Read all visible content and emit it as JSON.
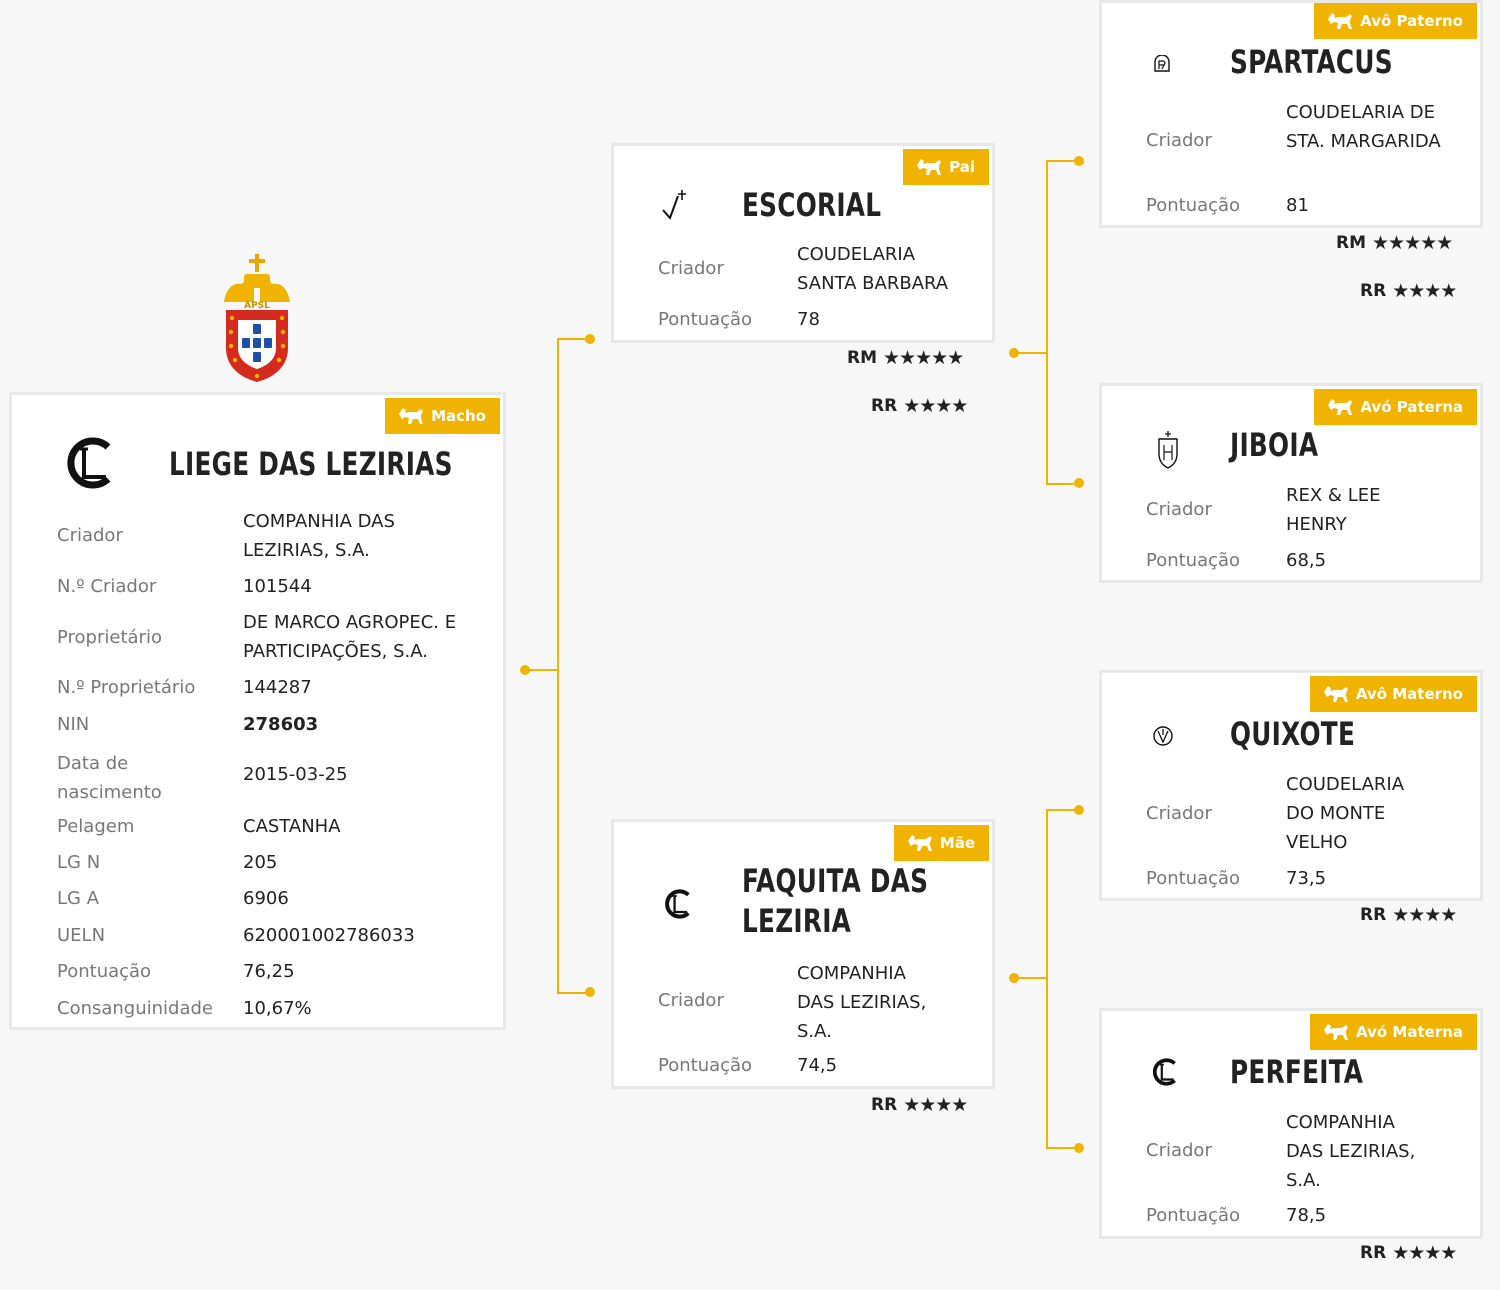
{
  "colors": {
    "accent": "#f0b400",
    "background": "#f7f7f7",
    "card_border": "#e8e8e8",
    "text_dark": "#222222",
    "text_label": "#777777"
  },
  "main_horse": {
    "badge": "Macho",
    "name": "LIEGE DAS LEZIRIAS",
    "brand_icon": "cl-brand-icon",
    "fields": [
      {
        "label": "Criador",
        "value": "COMPANHIA DAS LEZIRIAS, S.A."
      },
      {
        "label": "N.º Criador",
        "value": "101544"
      },
      {
        "label": "Proprietário",
        "value": "DE MARCO AGROPEC. E PARTICIPAÇÕES, S.A."
      },
      {
        "label": "N.º Proprietário",
        "value": "144287"
      },
      {
        "label": "NIN",
        "value": "278603"
      },
      {
        "label": "Data de nascimento",
        "value": "2015-03-25"
      },
      {
        "label": "Pelagem",
        "value": "CASTANHA"
      },
      {
        "label": "LG N",
        "value": "205"
      },
      {
        "label": "LG A",
        "value": "6906"
      },
      {
        "label": "UELN",
        "value": "620001002786033"
      },
      {
        "label": "Pontuação",
        "value": "76,25"
      },
      {
        "label": "Consanguinidade",
        "value": "10,67%"
      }
    ]
  },
  "emblem": {
    "text": "APSL",
    "icon": "apsl-coat-of-arms-icon"
  },
  "sire": {
    "badge": "Pai",
    "name": "ESCORIAL",
    "brand_icon": "check-cross-brand-icon",
    "criador_label": "Criador",
    "criador": "COUDELARIA SANTA BARBARA",
    "pontuacao_label": "Pontuação",
    "pontuacao": "78",
    "ratings": [
      {
        "label": "RM",
        "stars": "★★★★★",
        "count": 5
      },
      {
        "label": "RR",
        "stars": "★★★★",
        "count": 4
      }
    ]
  },
  "dam": {
    "badge": "Mãe",
    "name_line1": "FAQUITA DAS",
    "name_line2": "LEZIRIA",
    "brand_icon": "cl-brand-icon",
    "criador_label": "Criador",
    "criador": "COMPANHIA DAS LEZIRIAS, S.A.",
    "pontuacao_label": "Pontuação",
    "pontuacao": "74,5",
    "ratings": [
      {
        "label": "RR",
        "stars": "★★★★",
        "count": 4
      }
    ]
  },
  "pg_sire": {
    "badge": "Avô Paterno",
    "name": "SPARTACUS",
    "brand_icon": "ap-brand-icon",
    "criador_label": "Criador",
    "criador": "COUDELARIA DE STA. MARGARIDA",
    "pontuacao_label": "Pontuação",
    "pontuacao": "81",
    "ratings": [
      {
        "label": "RM",
        "stars": "★★★★★",
        "count": 5
      },
      {
        "label": "RR",
        "stars": "★★★★",
        "count": 4
      }
    ]
  },
  "pg_dam": {
    "badge": "Avó Paterna",
    "name": "JIBOIA",
    "brand_icon": "shield-h-brand-icon",
    "criador_label": "Criador",
    "criador": "REX & LEE HENRY",
    "pontuacao_label": "Pontuação",
    "pontuacao": "68,5",
    "ratings": []
  },
  "mg_sire": {
    "badge": "Avô Materno",
    "name": "QUIXOTE",
    "brand_icon": "circle-v-brand-icon",
    "criador_label": "Criador",
    "criador": "COUDELARIA DO MONTE VELHO",
    "pontuacao_label": "Pontuação",
    "pontuacao": "73,5",
    "ratings": [
      {
        "label": "RR",
        "stars": "★★★★",
        "count": 4
      }
    ]
  },
  "mg_dam": {
    "badge": "Avó Materna",
    "name": "PERFEITA",
    "brand_icon": "cl-brand-icon",
    "criador_label": "Criador",
    "criador": "COMPANHIA DAS LEZIRIAS, S.A.",
    "pontuacao_label": "Pontuação",
    "pontuacao": "78,5",
    "ratings": [
      {
        "label": "RR",
        "stars": "★★★★",
        "count": 4
      }
    ]
  }
}
